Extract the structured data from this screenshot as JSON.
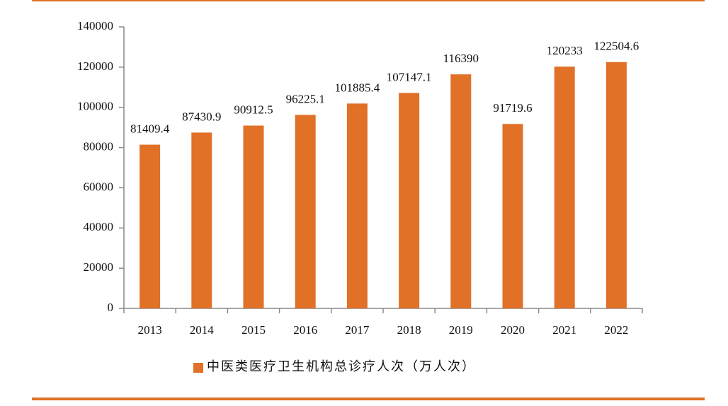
{
  "chart_data": {
    "type": "bar",
    "categories": [
      "2013",
      "2014",
      "2015",
      "2016",
      "2017",
      "2018",
      "2019",
      "2020",
      "2021",
      "2022"
    ],
    "series": [
      {
        "name": "中医类医疗卫生机构总诊疗人次（万人次）",
        "color": "#e07127",
        "values": [
          81409.4,
          87430.9,
          90912.5,
          96225.1,
          101885.4,
          107147.1,
          116390,
          91719.6,
          120233,
          122504.6
        ]
      }
    ],
    "ylim": [
      0,
      140000
    ],
    "yticks": [
      0,
      20000,
      40000,
      60000,
      80000,
      100000,
      120000,
      140000
    ],
    "legend": "bottom"
  }
}
